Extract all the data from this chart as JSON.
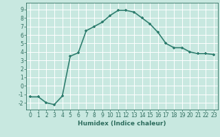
{
  "x": [
    0,
    1,
    2,
    3,
    4,
    5,
    6,
    7,
    8,
    9,
    10,
    11,
    12,
    13,
    14,
    15,
    16,
    17,
    18,
    19,
    20,
    21,
    22,
    23
  ],
  "y": [
    -1.3,
    -1.3,
    -2.0,
    -2.2,
    -1.2,
    3.5,
    3.9,
    6.5,
    7.0,
    7.5,
    8.3,
    8.9,
    8.9,
    8.7,
    8.0,
    7.3,
    6.3,
    5.0,
    4.5,
    4.5,
    4.0,
    3.8,
    3.8,
    3.7
  ],
  "line_color": "#2e7d6e",
  "marker": "+",
  "bg_color": "#c8e8e0",
  "grid_color": "#ffffff",
  "xlabel": "Humidex (Indice chaleur)",
  "ylabel": "",
  "xlim": [
    -0.5,
    23.5
  ],
  "ylim": [
    -2.8,
    9.8
  ],
  "yticks": [
    -2,
    -1,
    0,
    1,
    2,
    3,
    4,
    5,
    6,
    7,
    8,
    9
  ],
  "xticks": [
    0,
    1,
    2,
    3,
    4,
    5,
    6,
    7,
    8,
    9,
    10,
    11,
    12,
    13,
    14,
    15,
    16,
    17,
    18,
    19,
    20,
    21,
    22,
    23
  ],
  "font_color": "#2e6d5e",
  "linewidth": 1.2,
  "markersize": 3.5,
  "tick_fontsize": 5.5,
  "xlabel_fontsize": 6.5
}
